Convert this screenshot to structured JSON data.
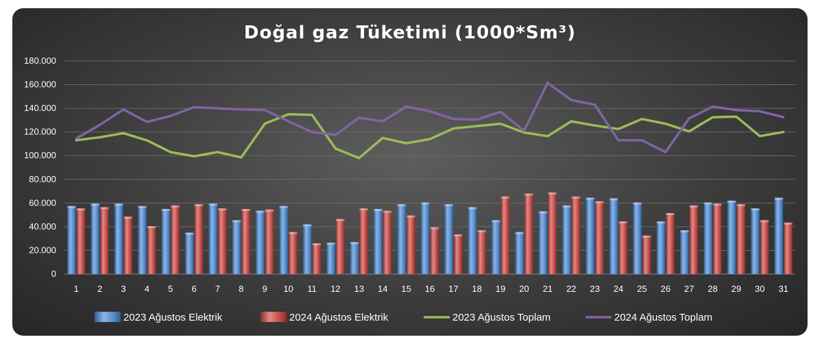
{
  "chart_data": {
    "type": "bar",
    "title": "Doğal gaz Tüketimi (1000*Sm³)",
    "xlabel": "",
    "ylabel": "",
    "ylim": [
      0,
      180000
    ],
    "yticks": [
      "0",
      "20.000",
      "40.000",
      "60.000",
      "80.000",
      "100.000",
      "120.000",
      "140.000",
      "160.000",
      "180.000"
    ],
    "categories": [
      "1",
      "2",
      "3",
      "4",
      "5",
      "6",
      "7",
      "8",
      "9",
      "10",
      "11",
      "12",
      "13",
      "14",
      "15",
      "16",
      "17",
      "18",
      "19",
      "20",
      "21",
      "22",
      "23",
      "24",
      "25",
      "26",
      "27",
      "28",
      "29",
      "30",
      "31"
    ],
    "grid": true,
    "legend_position": "bottom",
    "series": [
      {
        "name": "2023 Ağustos Elektrik",
        "kind": "bar",
        "color": "#4f86c6",
        "values": [
          57500,
          59500,
          59500,
          57500,
          55000,
          35000,
          59500,
          45500,
          53500,
          57500,
          42000,
          26500,
          27000,
          55000,
          59000,
          60500,
          59000,
          56500,
          45500,
          35500,
          53000,
          58000,
          64500,
          64000,
          60500,
          44500,
          37000,
          60500,
          62000,
          55500,
          64500
        ]
      },
      {
        "name": "2024 Ağustos Elektrik",
        "kind": "bar",
        "color": "#c0504d",
        "values": [
          55500,
          56500,
          48500,
          40500,
          58000,
          59000,
          55500,
          55000,
          54500,
          35500,
          26000,
          46500,
          55500,
          53500,
          49500,
          39500,
          33500,
          37000,
          65500,
          68000,
          69000,
          65500,
          61500,
          44500,
          32500,
          51500,
          58000,
          59500,
          59000,
          45500,
          43500
        ]
      },
      {
        "name": "2023 Ağustos Toplam",
        "kind": "line",
        "color": "#9bbb59",
        "values": [
          113000,
          115500,
          119000,
          113000,
          103000,
          99500,
          103000,
          98500,
          127000,
          135000,
          134500,
          106000,
          98000,
          115000,
          110500,
          114000,
          123000,
          125000,
          127000,
          119500,
          116500,
          129000,
          125500,
          122500,
          131000,
          127000,
          120500,
          132500,
          133000,
          116500,
          120000
        ]
      },
      {
        "name": "2024 Ağustos Toplam",
        "kind": "line",
        "color": "#8064a2",
        "values": [
          114500,
          126000,
          139000,
          128500,
          133500,
          141000,
          140000,
          139000,
          138500,
          129000,
          120000,
          117500,
          132000,
          129000,
          141500,
          137500,
          131000,
          130500,
          137000,
          121000,
          161500,
          147000,
          143000,
          113000,
          113000,
          103000,
          131500,
          141500,
          138500,
          137500,
          132500
        ]
      }
    ]
  }
}
